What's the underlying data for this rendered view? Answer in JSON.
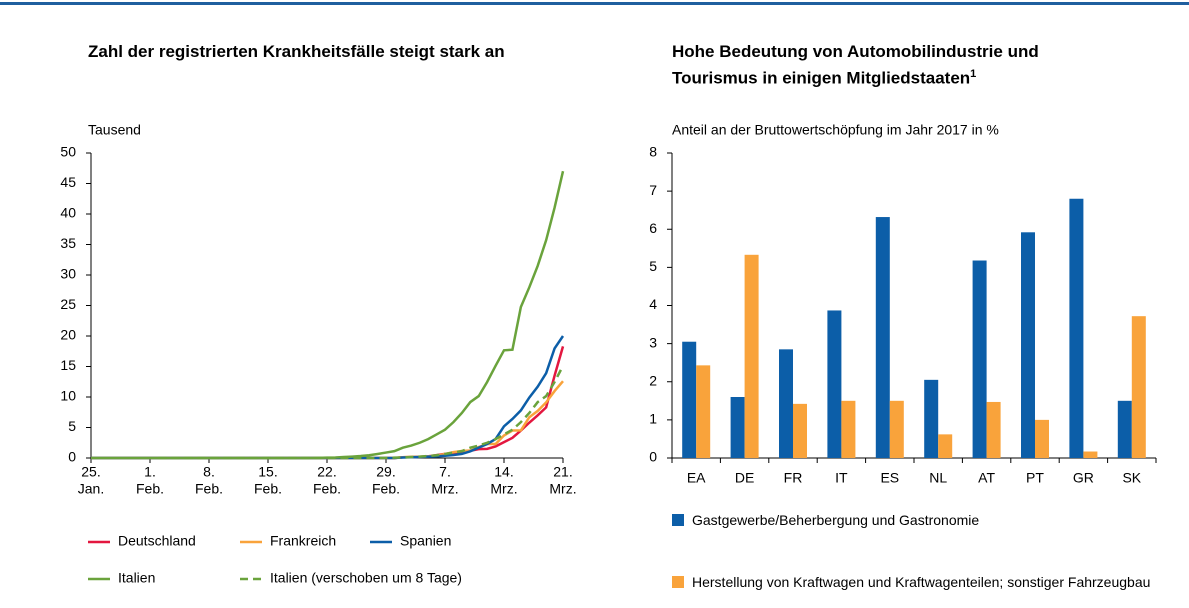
{
  "chart_data": [
    {
      "type": "line",
      "title": "Zahl der registrierten Krankheitsfälle steigt stark an",
      "y_label": "Tausend",
      "categories": [
        "25. Jan.",
        null,
        null,
        null,
        null,
        null,
        null,
        "1. Feb.",
        null,
        null,
        null,
        null,
        null,
        null,
        "8. Feb.",
        null,
        null,
        null,
        null,
        null,
        null,
        "15. Feb.",
        null,
        null,
        null,
        null,
        null,
        null,
        "22. Feb.",
        null,
        null,
        null,
        null,
        null,
        null,
        "29. Feb.",
        null,
        null,
        null,
        null,
        null,
        null,
        "7. Mrz.",
        null,
        null,
        null,
        null,
        null,
        null,
        "14. Mrz.",
        null,
        null,
        null,
        null,
        null,
        null,
        "21. Mrz."
      ],
      "ylim": [
        0,
        50
      ],
      "yticks": [
        0,
        5,
        10,
        15,
        20,
        25,
        30,
        35,
        40,
        45,
        50
      ],
      "series": [
        {
          "name": "Deutschland",
          "color": "#e3173f",
          "style": "solid",
          "values": [
            0,
            0,
            0,
            0,
            0,
            0,
            0,
            0,
            0,
            0,
            0,
            0,
            0,
            0,
            0,
            0,
            0,
            0,
            0,
            0,
            0,
            0,
            0,
            0,
            0,
            0,
            0,
            0,
            0,
            0,
            0,
            0,
            0,
            0,
            0,
            0,
            0,
            0.13,
            0.16,
            0.2,
            0.26,
            0.48,
            0.67,
            0.8,
            1.04,
            1.18,
            1.46,
            1.5,
            1.9,
            2.6,
            3.3,
            4.5,
            5.8,
            7.0,
            8.3,
            13.5,
            18.3
          ]
        },
        {
          "name": "Frankreich",
          "color": "#f9a33b",
          "style": "solid",
          "values": [
            0,
            0,
            0,
            0,
            0,
            0,
            0,
            0,
            0,
            0,
            0,
            0,
            0,
            0,
            0,
            0,
            0,
            0,
            0,
            0,
            0,
            0,
            0,
            0,
            0,
            0,
            0,
            0,
            0,
            0,
            0,
            0,
            0,
            0,
            0,
            0,
            0,
            0.13,
            0.19,
            0.2,
            0.29,
            0.38,
            0.66,
            0.96,
            1.14,
            1.22,
            1.79,
            2.29,
            2.29,
            3.68,
            4.5,
            4.53,
            6.68,
            7.72,
            9.12,
            10.97,
            12.6
          ]
        },
        {
          "name": "Spanien",
          "color": "#0c5ea8",
          "style": "solid",
          "values": [
            0,
            0,
            0,
            0,
            0,
            0,
            0,
            0,
            0,
            0,
            0,
            0,
            0,
            0,
            0,
            0,
            0,
            0,
            0,
            0,
            0,
            0,
            0,
            0,
            0,
            0,
            0,
            0,
            0,
            0,
            0,
            0,
            0,
            0,
            0,
            0,
            0,
            0.09,
            0.12,
            0.17,
            0.22,
            0.26,
            0.36,
            0.5,
            0.67,
            1.1,
            1.7,
            2.3,
            3.1,
            5.2,
            6.4,
            7.8,
            9.9,
            11.7,
            13.9,
            17.96,
            20.0
          ]
        },
        {
          "name": "Italien",
          "color": "#6aa33c",
          "style": "solid",
          "values": [
            0,
            0,
            0,
            0,
            0,
            0,
            0,
            0,
            0,
            0,
            0,
            0,
            0,
            0,
            0,
            0,
            0,
            0,
            0,
            0,
            0,
            0,
            0,
            0,
            0,
            0,
            0,
            0.02,
            0.06,
            0.08,
            0.16,
            0.23,
            0.32,
            0.45,
            0.66,
            0.89,
            1.13,
            1.69,
            2.04,
            2.5,
            3.09,
            3.86,
            4.64,
            5.88,
            7.38,
            9.17,
            10.15,
            12.46,
            15.11,
            17.66,
            17.75,
            24.75,
            27.98,
            31.51,
            35.71,
            41.04,
            47.02
          ]
        },
        {
          "name": "Italien (verschoben um 8 Tage)",
          "color": "#6aa33c",
          "style": "dashed",
          "values": [
            null,
            null,
            null,
            null,
            null,
            null,
            null,
            null,
            0,
            0,
            0,
            0,
            0,
            0,
            0,
            0,
            0,
            0,
            0,
            0,
            0,
            0,
            0,
            0,
            0,
            0,
            0,
            0,
            0,
            0,
            0,
            0,
            0,
            0,
            0,
            0.02,
            0.06,
            0.08,
            0.16,
            0.23,
            0.32,
            0.45,
            0.66,
            0.89,
            1.13,
            1.69,
            2.04,
            2.5,
            3.09,
            3.86,
            4.64,
            5.88,
            7.38,
            9.17,
            10.15,
            12.46,
            15.11
          ]
        }
      ]
    },
    {
      "type": "bar",
      "title": "Hohe Bedeutung von Automobilindustrie und Tourismus in einigen Mitgliedstaaten",
      "title_footnote": "1",
      "y_label": "Anteil an der Bruttowertschöpfung im Jahr 2017 in %",
      "categories": [
        "EA",
        "DE",
        "FR",
        "IT",
        "ES",
        "NL",
        "AT",
        "PT",
        "GR",
        "SK"
      ],
      "ylim": [
        0,
        8
      ],
      "yticks": [
        0,
        1,
        2,
        3,
        4,
        5,
        6,
        7,
        8
      ],
      "series": [
        {
          "name": "Gastgewerbe/Beherbergung und Gastronomie",
          "color": "#0c5ea8",
          "values": [
            3.05,
            1.6,
            2.85,
            3.87,
            6.32,
            2.05,
            5.18,
            5.92,
            6.8,
            1.5
          ]
        },
        {
          "name": "Herstellung von Kraftwagen und Kraftwagenteilen; sonstiger Fahrzeugbau",
          "color": "#f9a33b",
          "values": [
            2.43,
            5.33,
            1.42,
            1.5,
            1.5,
            0.62,
            1.47,
            1.0,
            0.17,
            3.72
          ]
        }
      ]
    }
  ]
}
